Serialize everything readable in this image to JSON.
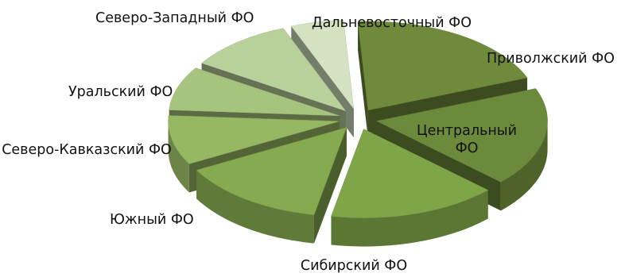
{
  "chart_data": {
    "type": "pie",
    "style": "3d-exploded",
    "title": "",
    "slices": [
      {
        "label": "Приволжский ФО",
        "value": 20,
        "color": "#6e8a3a"
      },
      {
        "label": "Центральный ФО",
        "value": 18,
        "color": "#6b8a3b"
      },
      {
        "label": "Сибирский ФО",
        "value": 16,
        "color": "#7ea547"
      },
      {
        "label": "Южный ФО",
        "value": 14,
        "color": "#86aa4f"
      },
      {
        "label": "Северо-Кавказский ФО",
        "value": 9,
        "color": "#96b862"
      },
      {
        "label": "Уральский ФО",
        "value": 8,
        "color": "#a6c47d"
      },
      {
        "label": "Северо-Западный ФО",
        "value": 10,
        "color": "#b8d09a"
      },
      {
        "label": "Дальневосточный ФО",
        "value": 5,
        "color": "#d3e2c1"
      }
    ]
  }
}
